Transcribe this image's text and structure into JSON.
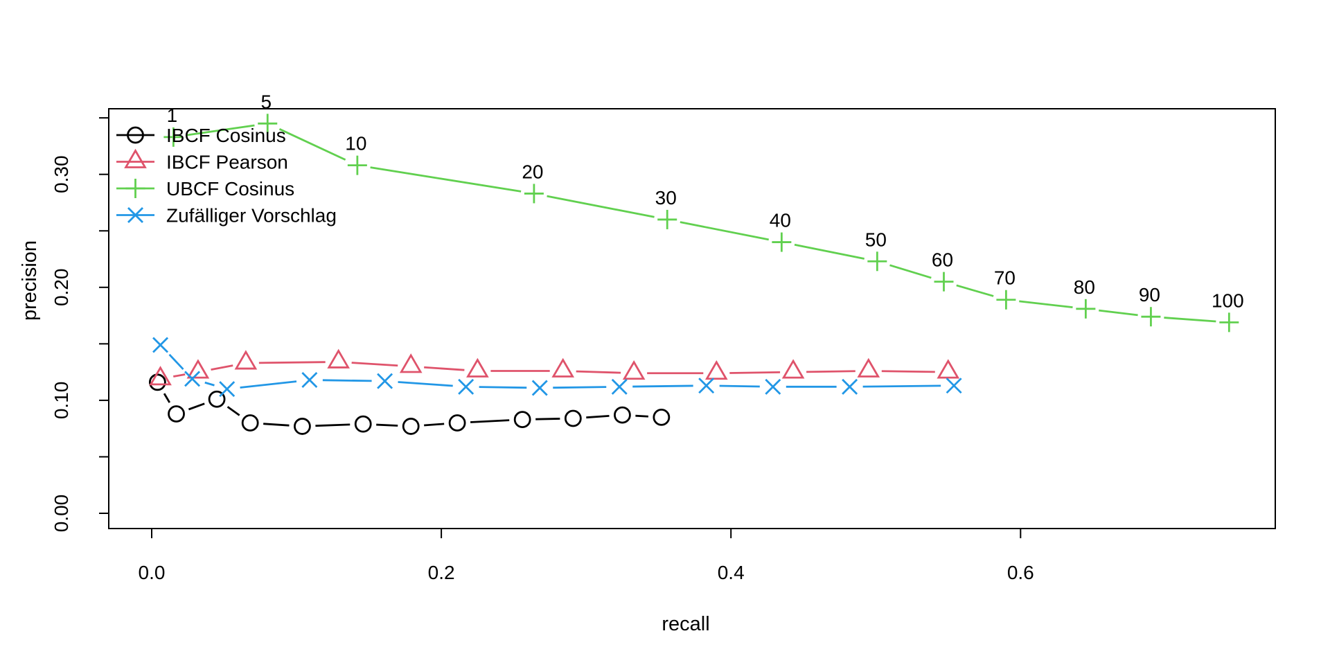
{
  "chart_data": {
    "type": "line",
    "title": "",
    "xlabel": "recall",
    "ylabel": "precision",
    "xlim": [
      -0.03,
      0.775
    ],
    "ylim": [
      -0.013,
      0.359
    ],
    "grid": false,
    "legend_position": "top-left",
    "x_ticks": {
      "values": [
        0.0,
        0.2,
        0.4,
        0.6
      ],
      "labels": [
        "0.0",
        "0.2",
        "0.4",
        "0.6"
      ]
    },
    "y_ticks": {
      "values": [
        0.0,
        0.05,
        0.1,
        0.15,
        0.2,
        0.25,
        0.3,
        0.35
      ],
      "labels": [
        "0.00",
        "",
        "0.10",
        "",
        "0.20",
        "",
        "0.30",
        ""
      ]
    },
    "series": [
      {
        "name": "IBCF Cosinus",
        "color": "#000000",
        "marker": "circle",
        "x": [
          0.004,
          0.017,
          0.045,
          0.068,
          0.104,
          0.146,
          0.179,
          0.211,
          0.256,
          0.291,
          0.325,
          0.352
        ],
        "y": [
          0.116,
          0.088,
          0.101,
          0.08,
          0.077,
          0.079,
          0.077,
          0.08,
          0.083,
          0.084,
          0.087,
          0.085
        ],
        "point_labels": []
      },
      {
        "name": "IBCF Pearson",
        "color": "#DF536B",
        "marker": "triangle",
        "x": [
          0.006,
          0.032,
          0.065,
          0.129,
          0.179,
          0.225,
          0.284,
          0.333,
          0.39,
          0.443,
          0.495,
          0.55
        ],
        "y": [
          0.119,
          0.125,
          0.133,
          0.134,
          0.13,
          0.126,
          0.126,
          0.124,
          0.124,
          0.125,
          0.126,
          0.125
        ],
        "point_labels": []
      },
      {
        "name": "UBCF Cosinus",
        "color": "#61D04F",
        "marker": "plus",
        "x": [
          0.015,
          0.08,
          0.142,
          0.264,
          0.356,
          0.435,
          0.501,
          0.547,
          0.59,
          0.645,
          0.69,
          0.744
        ],
        "y": [
          0.333,
          0.345,
          0.308,
          0.283,
          0.26,
          0.24,
          0.223,
          0.205,
          0.189,
          0.181,
          0.174,
          0.169
        ],
        "point_labels": [
          "1",
          "5",
          "10",
          "20",
          "30",
          "40",
          "50",
          "60",
          "70",
          "80",
          "90",
          "100"
        ]
      },
      {
        "name": "Zufälliger Vorschlag",
        "color": "#2297E6",
        "marker": "x",
        "x": [
          0.006,
          0.028,
          0.052,
          0.109,
          0.161,
          0.217,
          0.268,
          0.323,
          0.383,
          0.429,
          0.482,
          0.554
        ],
        "y": [
          0.149,
          0.119,
          0.11,
          0.118,
          0.117,
          0.112,
          0.111,
          0.112,
          0.113,
          0.112,
          0.112,
          0.113
        ],
        "point_labels": []
      }
    ]
  }
}
